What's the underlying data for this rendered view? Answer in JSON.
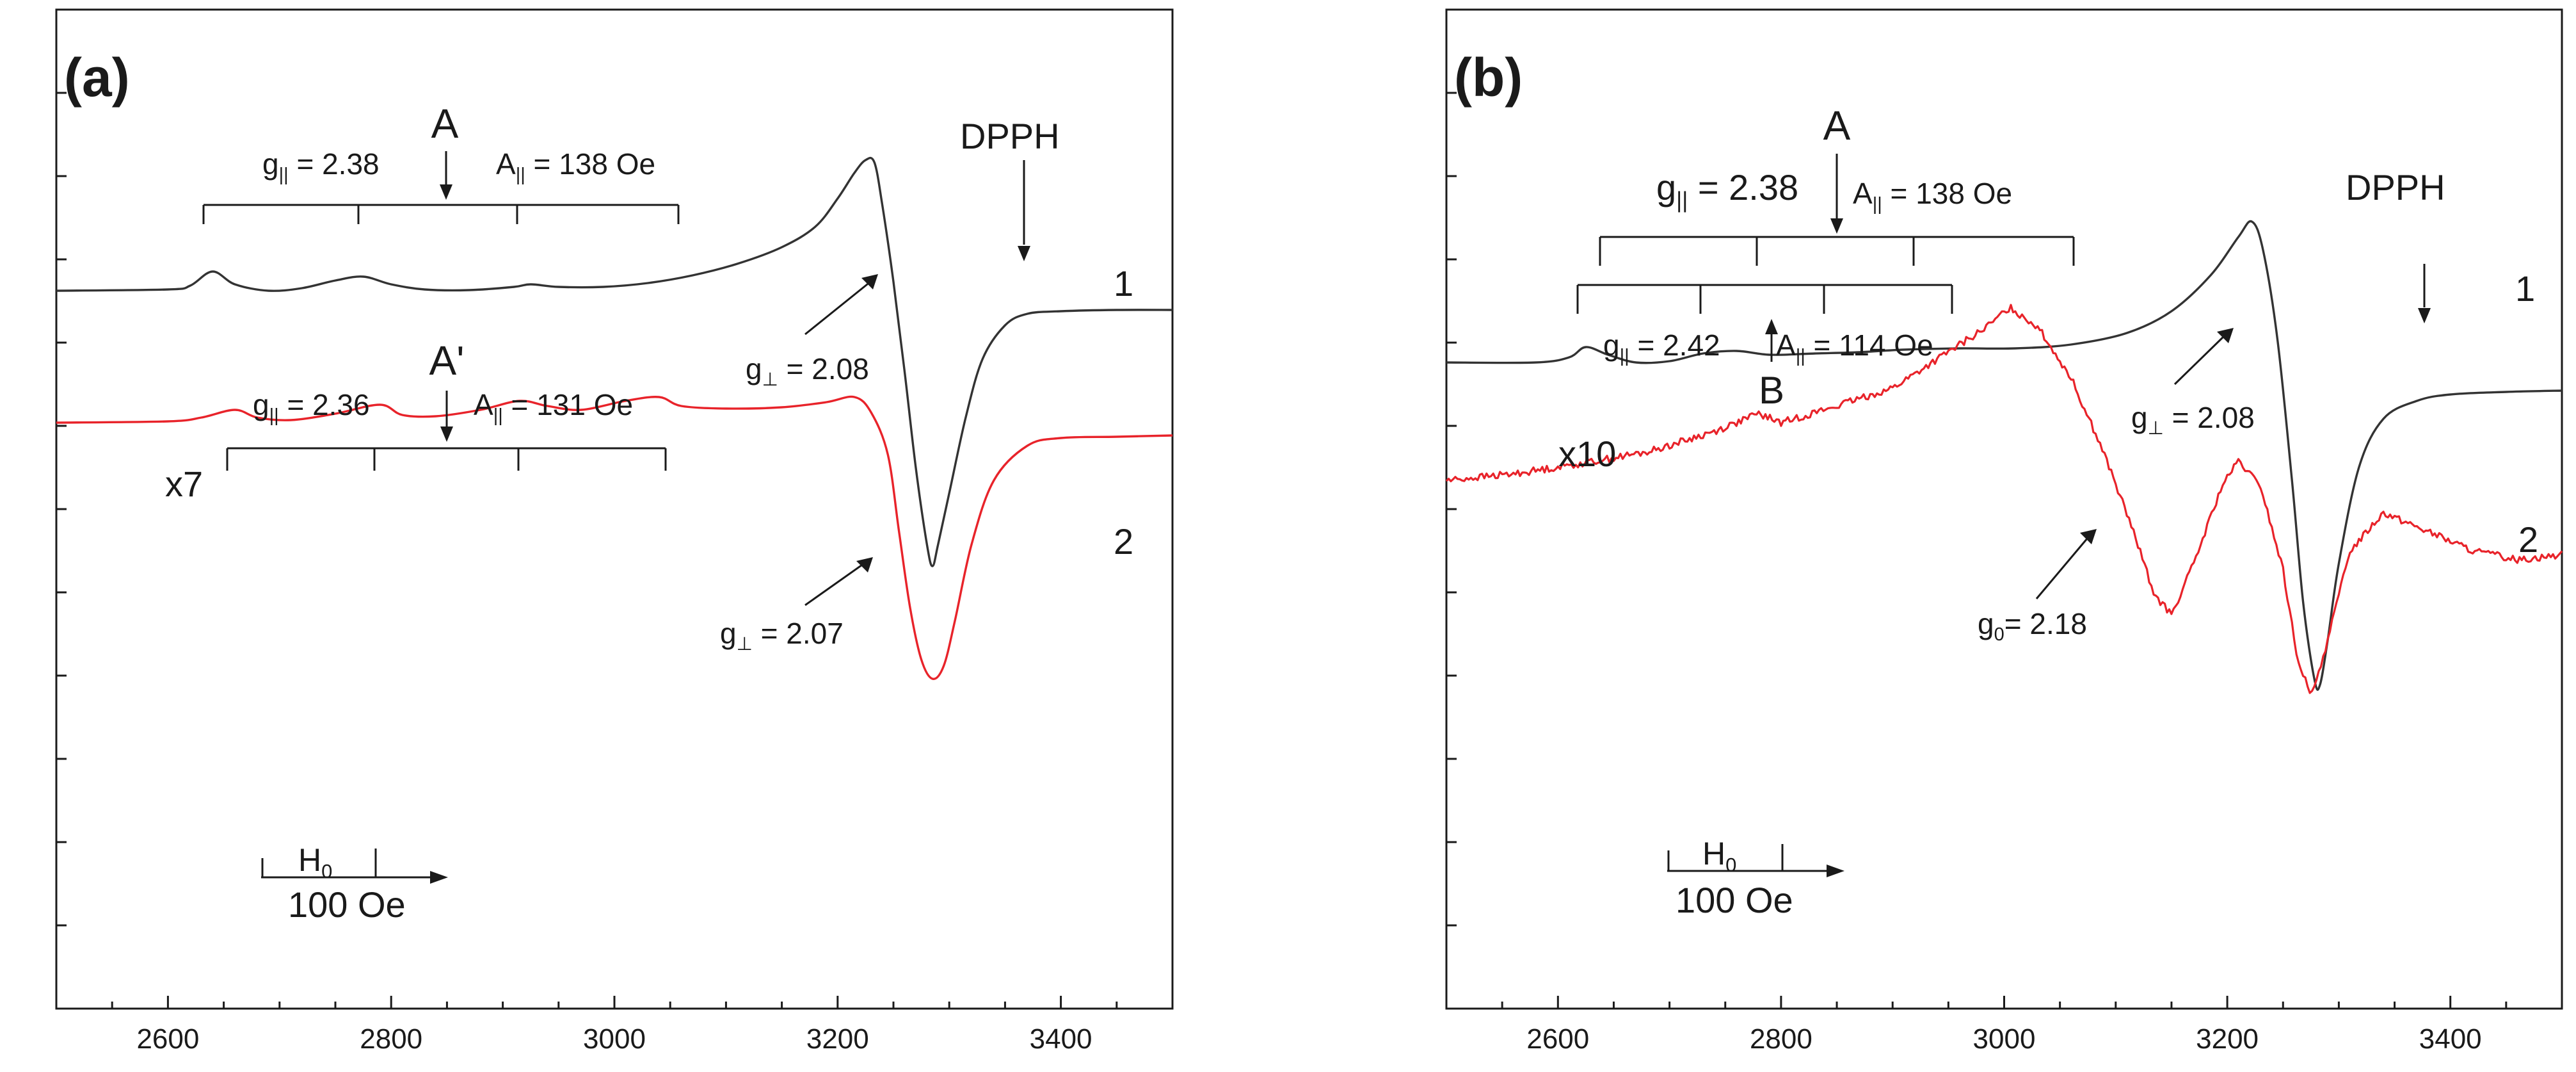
{
  "chart_data": [
    {
      "type": "line",
      "panel_label": "(a)",
      "xlim": [
        2500,
        3500
      ],
      "xticks": [
        2600,
        2800,
        3000,
        3200,
        3400
      ],
      "xtick_labels": [
        "2600",
        "2800",
        "3000",
        "3200",
        "3400"
      ],
      "ylabel": "",
      "y_ticks_labeled": false,
      "series": [
        {
          "name": "1",
          "color": "#333333",
          "x": [
            2500,
            2600,
            2620,
            2640,
            2660,
            2690,
            2720,
            2750,
            2775,
            2800,
            2830,
            2870,
            2910,
            2925,
            2950,
            2990,
            3030,
            3070,
            3110,
            3150,
            3180,
            3200,
            3215,
            3225,
            3233,
            3240,
            3250,
            3260,
            3270,
            3280,
            3285,
            3290,
            3300,
            3315,
            3330,
            3350,
            3370,
            3400,
            3450,
            3500
          ],
          "y": [
            0.63,
            0.64,
            0.67,
            0.78,
            0.68,
            0.63,
            0.65,
            0.71,
            0.74,
            0.68,
            0.64,
            0.635,
            0.66,
            0.68,
            0.66,
            0.66,
            0.69,
            0.75,
            0.84,
            0.97,
            1.13,
            1.35,
            1.55,
            1.65,
            1.63,
            1.3,
            0.7,
            0.0,
            -0.75,
            -1.35,
            -1.52,
            -1.35,
            -0.95,
            -0.35,
            0.1,
            0.36,
            0.45,
            0.47,
            0.48,
            0.48
          ]
        },
        {
          "name": "2",
          "color": "#e8232a",
          "scale_label": "x7",
          "x": [
            2500,
            2600,
            2630,
            2660,
            2680,
            2710,
            2750,
            2790,
            2810,
            2840,
            2880,
            2915,
            2940,
            2970,
            3010,
            3040,
            3060,
            3100,
            3150,
            3190,
            3215,
            3230,
            3245,
            3255,
            3265,
            3275,
            3285,
            3295,
            3305,
            3320,
            3340,
            3370,
            3400,
            3450,
            3500
          ],
          "y": [
            -0.4,
            -0.39,
            -0.36,
            -0.3,
            -0.36,
            -0.38,
            -0.33,
            -0.26,
            -0.34,
            -0.35,
            -0.3,
            -0.23,
            -0.27,
            -0.3,
            -0.23,
            -0.2,
            -0.27,
            -0.29,
            -0.28,
            -0.24,
            -0.2,
            -0.32,
            -0.65,
            -1.25,
            -1.85,
            -2.25,
            -2.4,
            -2.3,
            -1.95,
            -1.35,
            -0.85,
            -0.58,
            -0.52,
            -0.51,
            -0.5
          ]
        }
      ],
      "annotations": {
        "site_label": "A",
        "site_label_2": "A'",
        "g_par_1": "g|| = 2.38",
        "a_par_1": "A|| = 138 Oe",
        "g_par_2": "g|| = 2.36",
        "a_par_2": "A|| = 131 Oe",
        "g_perp_1": "g⊥ = 2.08",
        "g_perp_2": "g⊥ = 2.07",
        "dpph": "DPPH",
        "curve_1": "1",
        "curve_2": "2",
        "scale_2": "x7",
        "h0_label": "H0",
        "scale_bar": "100 Oe"
      }
    },
    {
      "type": "line",
      "panel_label": "(b)",
      "xlim": [
        2500,
        3500
      ],
      "xticks": [
        2600,
        2800,
        3000,
        3200,
        3400
      ],
      "xtick_labels": [
        "2600",
        "2800",
        "3000",
        "3200",
        "3400"
      ],
      "ylabel": "",
      "y_ticks_labeled": false,
      "series": [
        {
          "name": "1",
          "color": "#333333",
          "x": [
            2500,
            2580,
            2610,
            2625,
            2645,
            2670,
            2700,
            2730,
            2760,
            2790,
            2830,
            2870,
            2910,
            2960,
            3010,
            3060,
            3110,
            3150,
            3185,
            3210,
            3222,
            3232,
            3245,
            3258,
            3268,
            3278,
            3283,
            3290,
            3300,
            3318,
            3340,
            3370,
            3400,
            3450,
            3500
          ],
          "y": [
            0.72,
            0.72,
            0.76,
            0.84,
            0.78,
            0.72,
            0.73,
            0.79,
            0.81,
            0.78,
            0.79,
            0.8,
            0.82,
            0.83,
            0.83,
            0.86,
            0.95,
            1.12,
            1.4,
            1.7,
            1.82,
            1.6,
            0.9,
            -0.2,
            -1.15,
            -1.75,
            -1.8,
            -1.45,
            -0.85,
            -0.1,
            0.28,
            0.42,
            0.47,
            0.49,
            0.5
          ]
        },
        {
          "name": "2",
          "color": "#e8232a",
          "scale_label": "x10",
          "x": [
            2500,
            2560,
            2620,
            2680,
            2740,
            2780,
            2800,
            2850,
            2900,
            2950,
            2985,
            3005,
            3030,
            3060,
            3090,
            3115,
            3135,
            3150,
            3170,
            3195,
            3210,
            3230,
            3250,
            3262,
            3275,
            3290,
            3310,
            3340,
            3380,
            3420,
            3460,
            3500
          ],
          "y": [
            -0.2,
            -0.15,
            -0.07,
            0.02,
            0.18,
            0.32,
            0.25,
            0.38,
            0.52,
            0.8,
            1.0,
            1.15,
            1.0,
            0.6,
            0.0,
            -0.58,
            -1.1,
            -1.25,
            -0.85,
            -0.25,
            -0.05,
            -0.25,
            -0.9,
            -1.55,
            -1.9,
            -1.45,
            -0.75,
            -0.45,
            -0.6,
            -0.75,
            -0.82,
            -0.78
          ]
        }
      ],
      "annotations": {
        "site_label": "A",
        "site_label_b": "B",
        "g_par_1": "g|| = 2.38",
        "a_par_1": "A|| = 138 Oe",
        "g_par_2": "g|| = 2.42",
        "a_par_2": "A|| = 114 Oe",
        "g_perp_1": "g⊥ = 2.08",
        "g_0": "g0= 2.18",
        "dpph": "DPPH",
        "curve_1": "1",
        "curve_2": "2",
        "scale_2": "x10",
        "h0_label": "H0",
        "scale_bar": "100 Oe"
      }
    }
  ]
}
